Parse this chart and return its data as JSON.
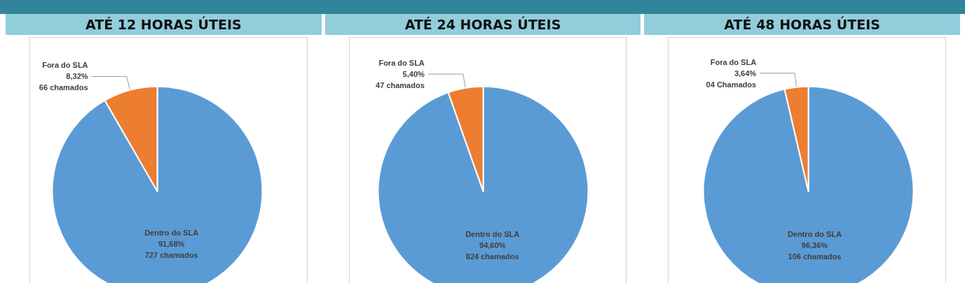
{
  "chart_data": [
    {
      "type": "pie",
      "title": "ATÉ 12 HORAS ÚTEIS",
      "categories": [
        "Dentro do SLA",
        "Fora do SLA"
      ],
      "values": [
        91.68,
        8.32
      ],
      "colors": [
        "#5b9bd5",
        "#ed7d31"
      ],
      "value_labels": [
        "91,68%\n727 chamados",
        "8,32%\n66 chamados"
      ]
    },
    {
      "type": "pie",
      "title": "ATÉ 24 HORAS ÚTEIS",
      "categories": [
        "Dentro do SLA",
        "Fora do SLA"
      ],
      "values": [
        94.6,
        5.4
      ],
      "colors": [
        "#5b9bd5",
        "#ed7d31"
      ],
      "value_labels": [
        "94,60%\n824 chamados",
        "5,40%\n47 chamados"
      ]
    },
    {
      "type": "pie",
      "title": "ATÉ 48 HORAS ÚTEIS",
      "categories": [
        "Dentro do SLA",
        "Fora do SLA"
      ],
      "values": [
        96.36,
        3.64
      ],
      "colors": [
        "#5b9bd5",
        "#ed7d31"
      ],
      "value_labels": [
        "96,36%\n106 chamados",
        "3,64%\n04 Chamados"
      ]
    }
  ]
}
